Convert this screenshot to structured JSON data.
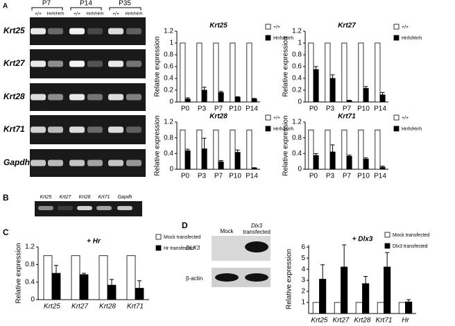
{
  "figure": {
    "panel_labels": [
      "A",
      "B",
      "C",
      "D"
    ],
    "gel_a": {
      "timepoints": [
        "P7",
        "P14",
        "P35"
      ],
      "lanes": [
        "+/+",
        "Hrrh/Hrrh",
        "+/+",
        "Hrrh/Hrrh",
        "+/+",
        "Hrrh/Hrrh"
      ],
      "rows": [
        "Krt25",
        "Krt27",
        "Krt28",
        "Krt71",
        "Gapdh"
      ]
    },
    "gel_b": {
      "lanes": [
        "Krt25",
        "Krt27",
        "Krt28",
        "Krt71",
        "Gapdh"
      ]
    },
    "blot_d": {
      "lanes": [
        "Mock",
        "Dlx3",
        "transfected"
      ],
      "rows": [
        "DLX3",
        "β-actin"
      ]
    }
  },
  "chart_data": [
    {
      "type": "bar",
      "title": "Krt25",
      "y_label": "Relative expression",
      "categories": [
        "P0",
        "P3",
        "P7",
        "P10",
        "P14"
      ],
      "series": [
        {
          "name": "+/+",
          "color": "#ffffff",
          "values": [
            1,
            1,
            1,
            1,
            1
          ]
        },
        {
          "name": "Hrrh/Hrrh",
          "color": "#000000",
          "values": [
            0.05,
            0.2,
            0.16,
            0.08,
            0.05
          ],
          "errors": [
            0.02,
            0.05,
            0.02,
            0.01,
            0.01
          ]
        }
      ],
      "ylim": [
        0,
        1.2
      ],
      "yticks": [
        0,
        0.2,
        0.4,
        0.6,
        0.8,
        1,
        1.2
      ],
      "legend": "right"
    },
    {
      "type": "bar",
      "title": "Krt27",
      "y_label": "Relative expression",
      "categories": [
        "P0",
        "P3",
        "P7",
        "P10",
        "P14"
      ],
      "series": [
        {
          "name": "+/+",
          "color": "#ffffff",
          "values": [
            1,
            1,
            1,
            1,
            1
          ]
        },
        {
          "name": "Hrrh/Hrrh",
          "color": "#000000",
          "values": [
            0.55,
            0.4,
            0.02,
            0.23,
            0.12
          ],
          "errors": [
            0.05,
            0.06,
            0.01,
            0.03,
            0.04
          ]
        }
      ],
      "ylim": [
        0,
        1.2
      ],
      "yticks": [
        0,
        0.2,
        0.4,
        0.6,
        0.8,
        1,
        1.2
      ],
      "legend": "right"
    },
    {
      "type": "bar",
      "title": "Krt28",
      "y_label": "Relative expression",
      "categories": [
        "P0",
        "P3",
        "P7",
        "P10",
        "P14"
      ],
      "series": [
        {
          "name": "+/+",
          "color": "#ffffff",
          "values": [
            1,
            1,
            1,
            1,
            1
          ]
        },
        {
          "name": "Hrrh/Hrrh",
          "color": "#000000",
          "values": [
            0.47,
            0.52,
            0.19,
            0.43,
            0.03
          ],
          "errors": [
            0.04,
            0.27,
            0.03,
            0.06,
            0.01
          ]
        }
      ],
      "ylim": [
        0,
        1.2
      ],
      "yticks": [
        0,
        0.4,
        0.8,
        1.2
      ],
      "legend": "right"
    },
    {
      "type": "bar",
      "title": "Krt71",
      "y_label": "Relative expression",
      "categories": [
        "P0",
        "P3",
        "P7",
        "P10",
        "P14"
      ],
      "series": [
        {
          "name": "+/+",
          "color": "#ffffff",
          "values": [
            1,
            1,
            1,
            1,
            1
          ]
        },
        {
          "name": "Hrrh/Hrrh",
          "color": "#000000",
          "values": [
            0.35,
            0.44,
            0.33,
            0.26,
            0.05
          ],
          "errors": [
            0.05,
            0.18,
            0.03,
            0.03,
            0.03
          ]
        }
      ],
      "ylim": [
        0,
        1.2
      ],
      "yticks": [
        0,
        0.4,
        0.8,
        1.2
      ],
      "legend": "right"
    },
    {
      "type": "bar",
      "title": "+ Hr",
      "y_label": "Relative expression",
      "categories": [
        "Krt25",
        "Krt27",
        "Krt28",
        "Krt71"
      ],
      "series": [
        {
          "name": "Mock transfected",
          "color": "#ffffff",
          "values": [
            1,
            1,
            1,
            1
          ]
        },
        {
          "name": "Hr transfected",
          "color": "#000000",
          "values": [
            0.6,
            0.57,
            0.33,
            0.26
          ],
          "errors": [
            0.18,
            0.03,
            0.13,
            0.17
          ]
        }
      ],
      "ylim": [
        0,
        1.2
      ],
      "yticks": [
        0,
        0.4,
        0.8,
        1.2
      ],
      "legend": "right"
    },
    {
      "type": "bar",
      "title": "+ Dlx3",
      "y_label": "Relative expression",
      "categories": [
        "Krt25",
        "Krt27",
        "Krt28",
        "Krt71",
        "Hr"
      ],
      "series": [
        {
          "name": "Mock transfected",
          "color": "#ffffff",
          "values": [
            1,
            1,
            1,
            1,
            1
          ]
        },
        {
          "name": "Dlx3 transfected",
          "color": "#000000",
          "values": [
            3.1,
            4.2,
            2.7,
            4.2,
            1.05
          ],
          "errors": [
            1.3,
            2.0,
            0.65,
            1.3,
            0.2
          ]
        }
      ],
      "ylim": [
        0,
        6.2
      ],
      "yticks": [
        1,
        2,
        3,
        4,
        5,
        6
      ],
      "legend": "right"
    }
  ]
}
